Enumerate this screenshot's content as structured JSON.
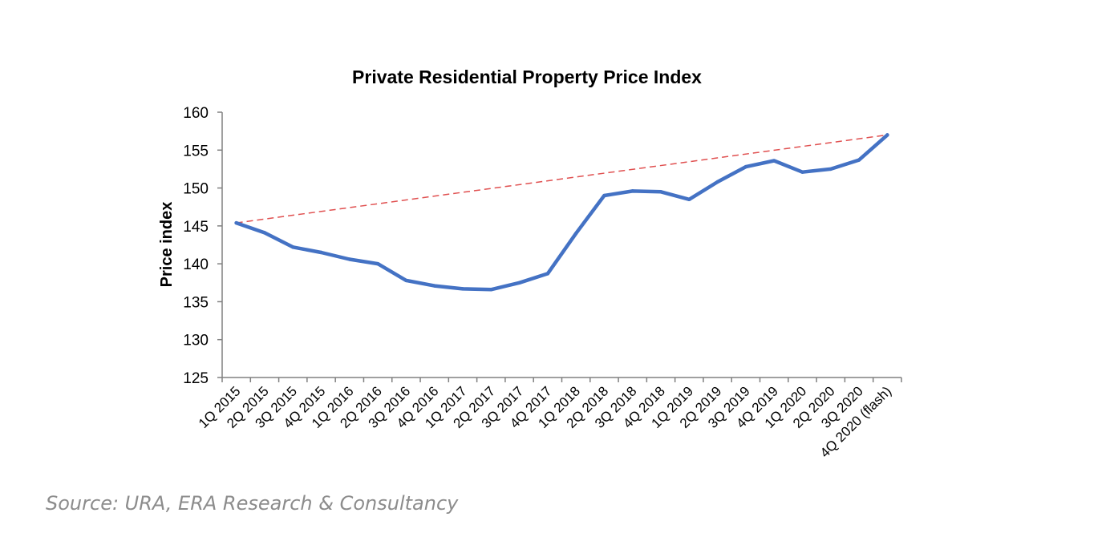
{
  "chart_data": {
    "type": "line",
    "title": "Private Residential Property Price Index",
    "xlabel": "",
    "ylabel": "Price index",
    "ylim": [
      125,
      160
    ],
    "yticks": [
      "125",
      "130",
      "135",
      "140",
      "145",
      "150",
      "155",
      "160"
    ],
    "categories": [
      "1Q 2015",
      "2Q 2015",
      "3Q 2015",
      "4Q 2015",
      "1Q 2016",
      "2Q 2016",
      "3Q 2016",
      "4Q 2016",
      "1Q 2017",
      "2Q 2017",
      "3Q 2017",
      "4Q 2017",
      "1Q 2018",
      "2Q 2018",
      "3Q 2018",
      "4Q 2018",
      "1Q 2019",
      "2Q 2019",
      "3Q 2019",
      "4Q 2019",
      "1Q 2020",
      "2Q 2020",
      "3Q 2020",
      "4Q 2020 (flash)"
    ],
    "series": [
      {
        "name": "Price index",
        "color": "#4472c4",
        "values": [
          145.4,
          144.1,
          142.2,
          141.5,
          140.6,
          140.0,
          137.8,
          137.1,
          136.7,
          136.6,
          137.5,
          138.7,
          144.0,
          149.0,
          149.6,
          149.5,
          148.5,
          150.8,
          152.8,
          153.6,
          152.1,
          152.5,
          153.7,
          157.0
        ]
      }
    ],
    "trendline": {
      "name": "Trend",
      "color": "#e05050",
      "from": {
        "category": "1Q 2015",
        "value": 145.4
      },
      "to": {
        "category": "4Q 2020 (flash)",
        "value": 157.0
      }
    },
    "grid": false,
    "legend": "none"
  },
  "source": "Source: URA, ERA Research & Consultancy"
}
